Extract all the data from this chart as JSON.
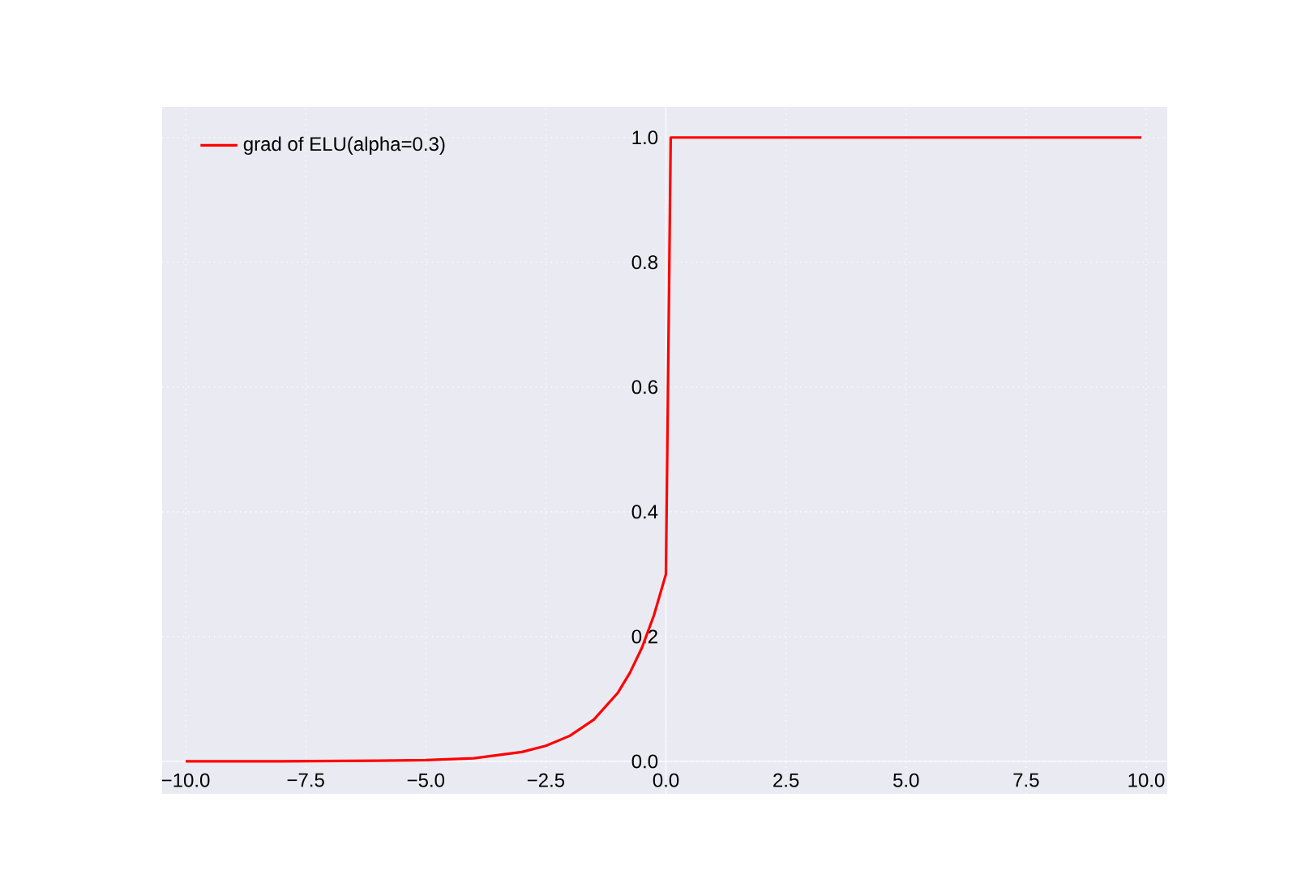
{
  "chart_data": {
    "type": "line",
    "x": [
      -10,
      -8,
      -6,
      -5,
      -4,
      -3,
      -2.5,
      -2,
      -1.5,
      -1,
      -0.75,
      -0.5,
      -0.25,
      0,
      0.1,
      9.9
    ],
    "series": [
      {
        "name": "grad of ELU(alpha=0.3)",
        "color": "#ff0000",
        "values": [
          0.0,
          0.0,
          0.001,
          0.002,
          0.005,
          0.015,
          0.025,
          0.041,
          0.067,
          0.11,
          0.142,
          0.182,
          0.234,
          0.3,
          1.0,
          1.0
        ]
      }
    ],
    "xlim": [
      -10.49,
      10.44
    ],
    "ylim": [
      -0.052,
      1.049
    ],
    "xticks": [
      {
        "value": -10,
        "label": "−10.0"
      },
      {
        "value": -7.5,
        "label": "−7.5"
      },
      {
        "value": -5,
        "label": "−5.0"
      },
      {
        "value": -2.5,
        "label": "−2.5"
      },
      {
        "value": 0,
        "label": "0.0"
      },
      {
        "value": 2.5,
        "label": "2.5"
      },
      {
        "value": 5,
        "label": "5.0"
      },
      {
        "value": 7.5,
        "label": "7.5"
      },
      {
        "value": 10,
        "label": "10.0"
      }
    ],
    "yticks": [
      {
        "value": 0,
        "label": "0.0"
      },
      {
        "value": 0.2,
        "label": "0.2"
      },
      {
        "value": 0.4,
        "label": "0.4"
      },
      {
        "value": 0.6,
        "label": "0.6"
      },
      {
        "value": 0.8,
        "label": "0.8"
      },
      {
        "value": 1.0,
        "label": "1.0"
      }
    ],
    "grid": true,
    "legend": "top left"
  }
}
